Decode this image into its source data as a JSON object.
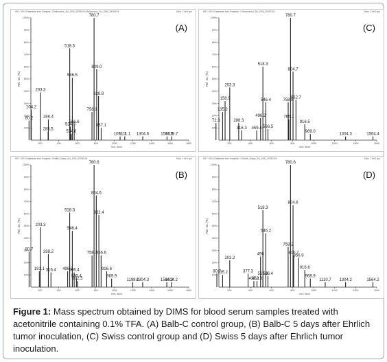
{
  "chart_data": [
    {
      "type": "bar",
      "panel_label": "(A)",
      "header_text": "H57: 105:4 Datasetse from Samples: 1 Balbcontrol_3ul_1000_20030104 /Balbcontrol_3ul_1000_20030104",
      "scale_text": "Max: 1.0e3 cps",
      "xlabel": "m/z, amu",
      "ylabel": "Rel. Int. (%)",
      "xlim": [
        100,
        1800
      ],
      "ylim": [
        0,
        100
      ],
      "x_ticks": [
        "200",
        "400",
        "600",
        "800",
        "1000",
        "1200",
        "1400",
        "1600",
        "1800"
      ],
      "y_ticks": [
        "10%",
        "20%",
        "30%",
        "40%",
        "50%",
        "60%",
        "70%",
        "80%",
        "90%",
        "100%"
      ],
      "peaks": [
        {
          "x": 780.7,
          "y": 100,
          "label": "780.7"
        },
        {
          "x": 518.5,
          "y": 75,
          "label": "518.5"
        },
        {
          "x": 809.0,
          "y": 58,
          "label": "809.0"
        },
        {
          "x": 546.5,
          "y": 51,
          "label": "546.5"
        },
        {
          "x": 828.8,
          "y": 36,
          "label": "828.8"
        },
        {
          "x": 203.3,
          "y": 39,
          "label": "203.3"
        },
        {
          "x": 758.1,
          "y": 23,
          "label": "758.1"
        },
        {
          "x": 104.2,
          "y": 25,
          "label": "104.2"
        },
        {
          "x": 80.2,
          "y": 16,
          "label": "80.2"
        },
        {
          "x": 288.4,
          "y": 17,
          "label": "288.4"
        },
        {
          "x": 566.6,
          "y": 13,
          "label": "566.6"
        },
        {
          "x": 524.5,
          "y": 11,
          "label": "524.5"
        },
        {
          "x": 285.5,
          "y": 7,
          "label": "285.5"
        },
        {
          "x": 534.6,
          "y": 5,
          "label": "534.6"
        },
        {
          "x": 857.1,
          "y": 10,
          "label": "857.1"
        },
        {
          "x": 1061.1,
          "y": 3,
          "label": "1061.1"
        },
        {
          "x": 1111.1,
          "y": 3,
          "label": "1111.1"
        },
        {
          "x": 1304.6,
          "y": 3,
          "label": "1304.6"
        },
        {
          "x": 1566.5,
          "y": 3,
          "label": "1566.5"
        },
        {
          "x": 1616.7,
          "y": 3,
          "label": "1616.7"
        }
      ]
    },
    {
      "type": "bar",
      "panel_label": "(C)",
      "header_text": "H57: 105:4 Datasetse from Samples: 1 Swisscontrol_3ul_1000_20030104",
      "scale_text": "Max: 1.5e3 cps",
      "xlabel": "m/z, amu",
      "ylabel": "Rel. Int. (%)",
      "xlim": [
        100,
        1600
      ],
      "ylim": [
        0,
        100
      ],
      "x_ticks": [
        "200",
        "400",
        "600",
        "800",
        "1000",
        "1200",
        "1400",
        "1600"
      ],
      "y_ticks": [
        "10%",
        "20%",
        "30%",
        "40%",
        "50%",
        "60%",
        "70%",
        "80%",
        "90%",
        "100%"
      ],
      "peaks": [
        {
          "x": 780.7,
          "y": 100,
          "label": "780.7"
        },
        {
          "x": 804.7,
          "y": 56,
          "label": "804.7"
        },
        {
          "x": 518.3,
          "y": 60,
          "label": "518.3"
        },
        {
          "x": 832.7,
          "y": 33,
          "label": "832.7"
        },
        {
          "x": 203.3,
          "y": 43,
          "label": "203.3"
        },
        {
          "x": 546.4,
          "y": 31,
          "label": "546.4"
        },
        {
          "x": 758.8,
          "y": 31,
          "label": "758.8"
        },
        {
          "x": 158.9,
          "y": 32,
          "label": "158.9"
        },
        {
          "x": 135.2,
          "y": 23,
          "label": "135.2"
        },
        {
          "x": 496.2,
          "y": 18,
          "label": "496.2"
        },
        {
          "x": 765.1,
          "y": 17,
          "label": "765.1"
        },
        {
          "x": 72.3,
          "y": 14,
          "label": "72.3"
        },
        {
          "x": 288.3,
          "y": 14,
          "label": "288.3"
        },
        {
          "x": 916.5,
          "y": 13,
          "label": "916.5"
        },
        {
          "x": 316.3,
          "y": 8,
          "label": "316.3"
        },
        {
          "x": 459.4,
          "y": 8,
          "label": "459.4"
        },
        {
          "x": 566.5,
          "y": 9,
          "label": "566.5"
        },
        {
          "x": 969.0,
          "y": 5,
          "label": "969.0"
        },
        {
          "x": 1304.3,
          "y": 3,
          "label": "1304.3"
        },
        {
          "x": 1564.4,
          "y": 3,
          "label": "1564.4"
        }
      ]
    },
    {
      "type": "bar",
      "panel_label": "(B)",
      "header_text": "H57: 105:4 Datasetse from Samples: 1 BalbE_5days_3ul_1000_20030104",
      "scale_text": "Max: 1.5e3 cps",
      "xlabel": "m/z, amu",
      "ylabel": "Rel. Int. (%)",
      "xlim": [
        100,
        1800
      ],
      "ylim": [
        0,
        100
      ],
      "x_ticks": [
        "200",
        "400",
        "600",
        "800",
        "1000",
        "1200",
        "1400",
        "1600",
        "1800"
      ],
      "y_ticks": [
        "10%",
        "20%",
        "30%",
        "40%",
        "50%",
        "60%",
        "70%",
        "80%",
        "90%",
        "100%"
      ],
      "peaks": [
        {
          "x": 780.6,
          "y": 100,
          "label": "780.6"
        },
        {
          "x": 804.6,
          "y": 75,
          "label": "804.6"
        },
        {
          "x": 518.3,
          "y": 61,
          "label": "518.3"
        },
        {
          "x": 832.4,
          "y": 59,
          "label": "832.4"
        },
        {
          "x": 546.4,
          "y": 46,
          "label": "546.4"
        },
        {
          "x": 203.3,
          "y": 49,
          "label": "203.3"
        },
        {
          "x": 758.7,
          "y": 26,
          "label": "758.7"
        },
        {
          "x": 856.6,
          "y": 26,
          "label": "856.6"
        },
        {
          "x": 80.7,
          "y": 29,
          "label": "80.7"
        },
        {
          "x": 288.2,
          "y": 27,
          "label": "288.2"
        },
        {
          "x": 191.1,
          "y": 13,
          "label": "191.1"
        },
        {
          "x": 316.4,
          "y": 12,
          "label": "316.4"
        },
        {
          "x": 496.2,
          "y": 13,
          "label": "496.2"
        },
        {
          "x": 566.4,
          "y": 12,
          "label": "566.4"
        },
        {
          "x": 916.6,
          "y": 13,
          "label": "916.6"
        },
        {
          "x": 590.4,
          "y": 7,
          "label": "590.4"
        },
        {
          "x": 602.3,
          "y": 5,
          "label": "602.3"
        },
        {
          "x": 969.9,
          "y": 7,
          "label": "969.9"
        },
        {
          "x": 1198.0,
          "y": 4,
          "label": "1198.0"
        },
        {
          "x": 1304.3,
          "y": 4,
          "label": "1304.3"
        },
        {
          "x": 1564.2,
          "y": 4,
          "label": "1564.2"
        },
        {
          "x": 1614.2,
          "y": 4,
          "label": "1614.2"
        }
      ]
    },
    {
      "type": "bar",
      "panel_label": "(D)",
      "header_text": "H57: 105:4 Datasetse from Samples: 1 SwissE_5days_3ul_1000_20030104",
      "scale_text": "Max: 1.5e3 cps",
      "xlabel": "m/z, amu",
      "ylabel": "Rel. Int. (%)",
      "xlim": [
        100,
        1600
      ],
      "ylim": [
        0,
        100
      ],
      "x_ticks": [
        "200",
        "400",
        "600",
        "800",
        "1000",
        "1200",
        "1400",
        "1600"
      ],
      "y_ticks": [
        "10%",
        "20%",
        "30%",
        "40%",
        "50%",
        "60%",
        "70%",
        "80%",
        "90%",
        "100%"
      ],
      "peaks": [
        {
          "x": 780.6,
          "y": 100,
          "label": "780.6"
        },
        {
          "x": 804.6,
          "y": 67,
          "label": "804.6"
        },
        {
          "x": 518.3,
          "y": 63,
          "label": "518.3"
        },
        {
          "x": 546.2,
          "y": 44,
          "label": "546.2"
        },
        {
          "x": 758.2,
          "y": 33,
          "label": "758.2"
        },
        {
          "x": 810.7,
          "y": 26,
          "label": "810.7"
        },
        {
          "x": 856.9,
          "y": 24,
          "label": "856.9"
        },
        {
          "x": 496,
          "y": 25,
          "label": "496"
        },
        {
          "x": 203.2,
          "y": 22,
          "label": "203.2"
        },
        {
          "x": 916.6,
          "y": 14,
          "label": "916.6"
        },
        {
          "x": 377.3,
          "y": 11,
          "label": "377.3"
        },
        {
          "x": 517.8,
          "y": 9,
          "label": "517.8"
        },
        {
          "x": 566.4,
          "y": 9,
          "label": "566.4"
        },
        {
          "x": 80.7,
          "y": 11,
          "label": "80.7"
        },
        {
          "x": 135.2,
          "y": 10,
          "label": "135.2"
        },
        {
          "x": 432.3,
          "y": 5,
          "label": "432.3"
        },
        {
          "x": 462.3,
          "y": 5,
          "label": "462.3"
        },
        {
          "x": 968.9,
          "y": 7,
          "label": "968.9"
        },
        {
          "x": 1110.7,
          "y": 4,
          "label": "1110.7"
        },
        {
          "x": 1304.2,
          "y": 4,
          "label": "1304.2"
        },
        {
          "x": 1564.2,
          "y": 4,
          "label": "1564.2"
        }
      ]
    }
  ],
  "caption": {
    "lead": "Figure 1:",
    "text": " Mass spectrum obtained by DIMS for blood serum samples treated with acetonitrile containing 0.1% TFA. (A) Balb-C control group, (B) Balb-C 5 days after Ehrlich tumor inoculation, (C) Swiss control group and (D) Swiss 5 days after Ehrlich tumor inoculation."
  },
  "colors": {
    "trace": "#222222",
    "axis": "#333333",
    "frame": "#9aa3b5"
  }
}
